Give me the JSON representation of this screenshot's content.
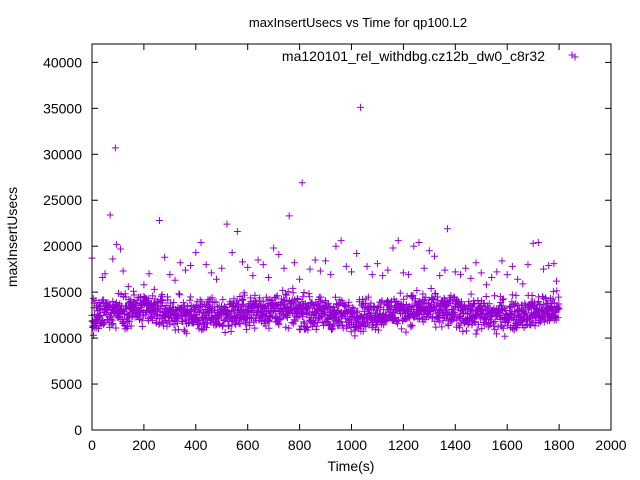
{
  "chart_data": {
    "type": "scatter",
    "title": "maxInsertUsecs vs Time for qp100.L2",
    "xlabel": "Time(s)",
    "ylabel": "maxInsertUsecs",
    "xlim": [
      0,
      2000
    ],
    "ylim": [
      0,
      42000
    ],
    "x_ticks": [
      "0",
      "200",
      "400",
      "600",
      "800",
      "1000",
      "1200",
      "1400",
      "1600",
      "1800",
      "2000"
    ],
    "y_ticks": [
      "0",
      "5000",
      "10000",
      "15000",
      "20000",
      "25000",
      "30000",
      "35000",
      "40000"
    ],
    "grid": false,
    "legend_position": "top-right",
    "marker": "+",
    "color": "#9400d3",
    "series": [
      {
        "name": "ma120101_rel_withdbg.cz12b_dw0_c8r32",
        "points": [
          [
            0,
            18700
          ],
          [
            5,
            14300
          ],
          [
            15,
            14100
          ],
          [
            20,
            12000
          ],
          [
            30,
            13200
          ],
          [
            40,
            16600
          ],
          [
            50,
            17000
          ],
          [
            70,
            23400
          ],
          [
            80,
            18600
          ],
          [
            90,
            30700
          ],
          [
            95,
            20200
          ],
          [
            110,
            19700
          ],
          [
            120,
            17300
          ],
          [
            140,
            15600
          ],
          [
            160,
            15100
          ],
          [
            180,
            14400
          ],
          [
            200,
            15800
          ],
          [
            220,
            17000
          ],
          [
            240,
            15300
          ],
          [
            260,
            22800
          ],
          [
            280,
            18800
          ],
          [
            300,
            16900
          ],
          [
            320,
            16300
          ],
          [
            340,
            18200
          ],
          [
            360,
            17400
          ],
          [
            380,
            17900
          ],
          [
            400,
            19300
          ],
          [
            420,
            20400
          ],
          [
            440,
            18000
          ],
          [
            460,
            17100
          ],
          [
            480,
            16400
          ],
          [
            500,
            17600
          ],
          [
            520,
            22400
          ],
          [
            540,
            19300
          ],
          [
            560,
            21600
          ],
          [
            580,
            18300
          ],
          [
            600,
            17700
          ],
          [
            620,
            16800
          ],
          [
            640,
            18500
          ],
          [
            660,
            18000
          ],
          [
            680,
            16600
          ],
          [
            700,
            19800
          ],
          [
            720,
            19100
          ],
          [
            740,
            17600
          ],
          [
            760,
            23300
          ],
          [
            780,
            18200
          ],
          [
            800,
            16400
          ],
          [
            810,
            26900
          ],
          [
            820,
            11300
          ],
          [
            840,
            17500
          ],
          [
            860,
            18500
          ],
          [
            880,
            17300
          ],
          [
            900,
            18400
          ],
          [
            920,
            16900
          ],
          [
            940,
            20000
          ],
          [
            960,
            20600
          ],
          [
            980,
            17800
          ],
          [
            1000,
            17200
          ],
          [
            1020,
            19200
          ],
          [
            1035,
            35100
          ],
          [
            1060,
            17800
          ],
          [
            1080,
            16900
          ],
          [
            1100,
            18100
          ],
          [
            1120,
            16800
          ],
          [
            1140,
            17400
          ],
          [
            1160,
            19800
          ],
          [
            1180,
            20600
          ],
          [
            1200,
            17100
          ],
          [
            1220,
            16900
          ],
          [
            1240,
            20000
          ],
          [
            1260,
            20400
          ],
          [
            1280,
            17600
          ],
          [
            1300,
            19500
          ],
          [
            1320,
            18900
          ],
          [
            1340,
            16800
          ],
          [
            1360,
            17400
          ],
          [
            1370,
            21900
          ],
          [
            1400,
            17200
          ],
          [
            1420,
            16900
          ],
          [
            1440,
            17600
          ],
          [
            1460,
            16500
          ],
          [
            1480,
            18200
          ],
          [
            1500,
            17100
          ],
          [
            1520,
            15800
          ],
          [
            1540,
            16600
          ],
          [
            1560,
            17200
          ],
          [
            1580,
            18400
          ],
          [
            1600,
            16900
          ],
          [
            1620,
            17800
          ],
          [
            1640,
            16400
          ],
          [
            1660,
            15900
          ],
          [
            1680,
            18000
          ],
          [
            1700,
            20300
          ],
          [
            1720,
            20400
          ],
          [
            1740,
            17500
          ],
          [
            1760,
            17900
          ],
          [
            1780,
            18100
          ],
          [
            1790,
            16200
          ],
          [
            1850,
            40800
          ]
        ],
        "dense_band": {
          "x_range": [
            0,
            1800
          ],
          "y_low": 10500,
          "y_high": 15500,
          "y_center": 12500
        }
      }
    ]
  }
}
